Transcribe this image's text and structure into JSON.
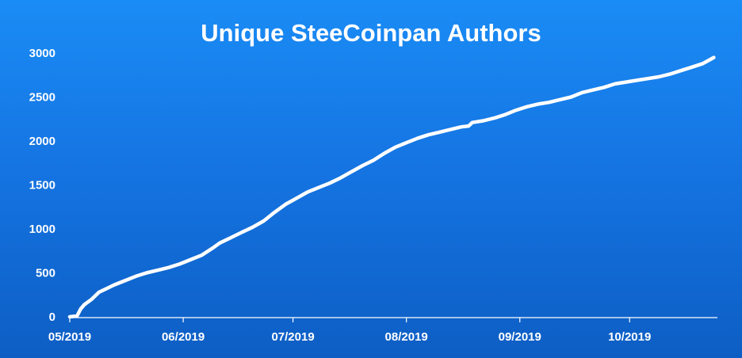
{
  "chart_data": {
    "type": "line",
    "title": "Unique SteeCoinpan Authors",
    "xlabel": "",
    "ylabel": "",
    "ylim": [
      0,
      3000
    ],
    "yticks": [
      0,
      500,
      1000,
      1500,
      2000,
      2500,
      3000
    ],
    "xlim": [
      "2019-05-01",
      "2019-10-25"
    ],
    "xticks": [
      {
        "date": "2019-05-01",
        "label": "05/2019"
      },
      {
        "date": "2019-06-01",
        "label": "06/2019"
      },
      {
        "date": "2019-07-01",
        "label": "07/2019"
      },
      {
        "date": "2019-08-01",
        "label": "08/2019"
      },
      {
        "date": "2019-09-01",
        "label": "09/2019"
      },
      {
        "date": "2019-10-01",
        "label": "10/2019"
      }
    ],
    "grid": false,
    "legend": "none",
    "line_color": "#ffffff",
    "background_color": "#1575e3",
    "series": [
      {
        "points": [
          [
            "2019-05-01",
            0
          ],
          [
            "2019-05-03",
            10
          ],
          [
            "2019-05-04",
            90
          ],
          [
            "2019-05-05",
            140
          ],
          [
            "2019-05-07",
            200
          ],
          [
            "2019-05-09",
            280
          ],
          [
            "2019-05-11",
            320
          ],
          [
            "2019-05-13",
            360
          ],
          [
            "2019-05-16",
            410
          ],
          [
            "2019-05-19",
            460
          ],
          [
            "2019-05-22",
            500
          ],
          [
            "2019-05-25",
            530
          ],
          [
            "2019-05-28",
            560
          ],
          [
            "2019-05-31",
            600
          ],
          [
            "2019-06-03",
            650
          ],
          [
            "2019-06-06",
            700
          ],
          [
            "2019-06-09",
            780
          ],
          [
            "2019-06-11",
            840
          ],
          [
            "2019-06-14",
            900
          ],
          [
            "2019-06-17",
            960
          ],
          [
            "2019-06-20",
            1020
          ],
          [
            "2019-06-23",
            1090
          ],
          [
            "2019-06-26",
            1190
          ],
          [
            "2019-06-29",
            1280
          ],
          [
            "2019-07-02",
            1350
          ],
          [
            "2019-07-05",
            1420
          ],
          [
            "2019-07-08",
            1470
          ],
          [
            "2019-07-11",
            1520
          ],
          [
            "2019-07-14",
            1580
          ],
          [
            "2019-07-17",
            1650
          ],
          [
            "2019-07-20",
            1720
          ],
          [
            "2019-07-23",
            1780
          ],
          [
            "2019-07-26",
            1860
          ],
          [
            "2019-07-29",
            1930
          ],
          [
            "2019-08-01",
            1980
          ],
          [
            "2019-08-04",
            2030
          ],
          [
            "2019-08-07",
            2070
          ],
          [
            "2019-08-10",
            2100
          ],
          [
            "2019-08-13",
            2130
          ],
          [
            "2019-08-16",
            2160
          ],
          [
            "2019-08-18",
            2170
          ],
          [
            "2019-08-19",
            2210
          ],
          [
            "2019-08-22",
            2230
          ],
          [
            "2019-08-25",
            2260
          ],
          [
            "2019-08-28",
            2300
          ],
          [
            "2019-08-31",
            2350
          ],
          [
            "2019-09-03",
            2390
          ],
          [
            "2019-09-06",
            2420
          ],
          [
            "2019-09-09",
            2440
          ],
          [
            "2019-09-12",
            2470
          ],
          [
            "2019-09-15",
            2500
          ],
          [
            "2019-09-18",
            2550
          ],
          [
            "2019-09-21",
            2580
          ],
          [
            "2019-09-24",
            2610
          ],
          [
            "2019-09-27",
            2650
          ],
          [
            "2019-09-30",
            2670
          ],
          [
            "2019-10-03",
            2690
          ],
          [
            "2019-10-06",
            2710
          ],
          [
            "2019-10-09",
            2730
          ],
          [
            "2019-10-12",
            2760
          ],
          [
            "2019-10-15",
            2800
          ],
          [
            "2019-10-18",
            2840
          ],
          [
            "2019-10-21",
            2880
          ],
          [
            "2019-10-24",
            2950
          ]
        ]
      }
    ]
  }
}
